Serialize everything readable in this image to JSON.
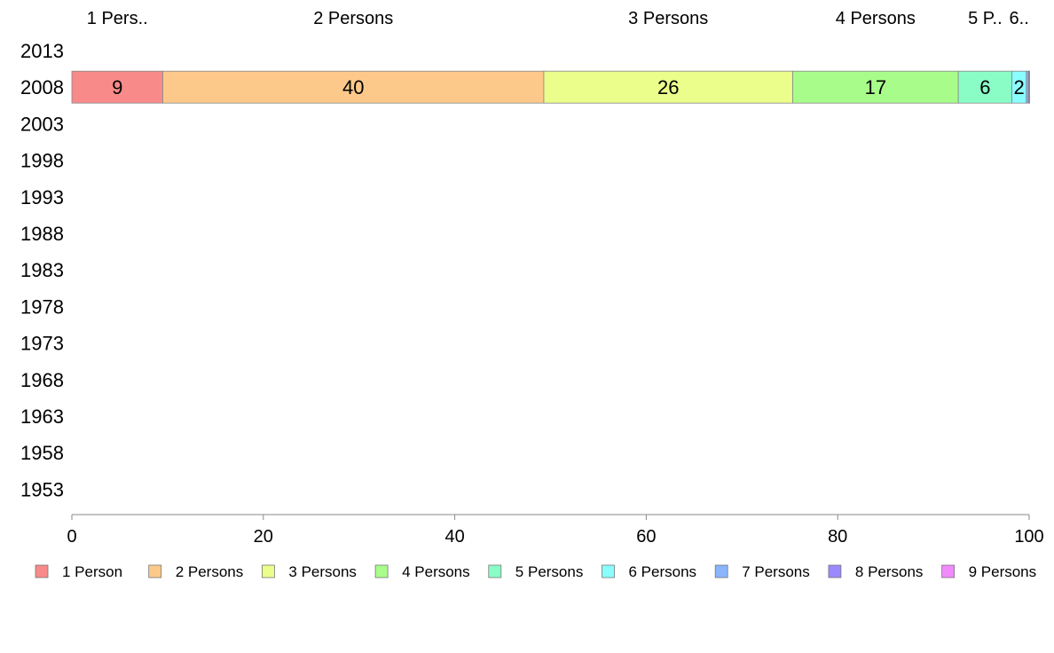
{
  "chart_data": {
    "type": "bar",
    "orientation": "horizontal",
    "stacked": true,
    "categories": [
      "2013",
      "2008",
      "2003",
      "1998",
      "1993",
      "1988",
      "1983",
      "1978",
      "1973",
      "1968",
      "1963",
      "1958",
      "1953"
    ],
    "xlim": [
      0,
      100
    ],
    "xticks": [
      "0",
      "20",
      "40",
      "60",
      "80",
      "100"
    ],
    "series": [
      {
        "name": "1 Person",
        "values": [
          null,
          9.5,
          null,
          null,
          null,
          null,
          null,
          null,
          null,
          null,
          null,
          null,
          null
        ],
        "data_label": "9",
        "top_label": "1 Pers..",
        "color": "#f88a8a"
      },
      {
        "name": "2 Persons",
        "values": [
          null,
          39.8,
          null,
          null,
          null,
          null,
          null,
          null,
          null,
          null,
          null,
          null,
          null
        ],
        "data_label": "40",
        "top_label": "2 Persons",
        "color": "#fdc98a"
      },
      {
        "name": "3 Persons",
        "values": [
          null,
          26.0,
          null,
          null,
          null,
          null,
          null,
          null,
          null,
          null,
          null,
          null,
          null
        ],
        "data_label": "26",
        "top_label": "3 Persons",
        "color": "#ebfd8a"
      },
      {
        "name": "4 Persons",
        "values": [
          null,
          17.3,
          null,
          null,
          null,
          null,
          null,
          null,
          null,
          null,
          null,
          null,
          null
        ],
        "data_label": "17",
        "top_label": "4 Persons",
        "color": "#a8fd8a"
      },
      {
        "name": "5 Persons",
        "values": [
          null,
          5.6,
          null,
          null,
          null,
          null,
          null,
          null,
          null,
          null,
          null,
          null,
          null
        ],
        "data_label": "6",
        "top_label": "5 P..",
        "color": "#8afdc7"
      },
      {
        "name": "6 Persons",
        "values": [
          null,
          1.5,
          null,
          null,
          null,
          null,
          null,
          null,
          null,
          null,
          null,
          null,
          null
        ],
        "data_label": "2",
        "top_label": "6..",
        "color": "#8afdfd"
      },
      {
        "name": "7 Persons",
        "values": [
          null,
          0.2,
          null,
          null,
          null,
          null,
          null,
          null,
          null,
          null,
          null,
          null,
          null
        ],
        "data_label": "",
        "top_label": "",
        "color": "#8ab5fd"
      },
      {
        "name": "8 Persons",
        "values": [
          null,
          0.1,
          null,
          null,
          null,
          null,
          null,
          null,
          null,
          null,
          null,
          null,
          null
        ],
        "data_label": "",
        "top_label": "",
        "color": "#9a8afd"
      },
      {
        "name": "9 Persons",
        "values": [
          null,
          0.05,
          null,
          null,
          null,
          null,
          null,
          null,
          null,
          null,
          null,
          null,
          null
        ],
        "data_label": "",
        "top_label": "",
        "color": "#f08afd"
      }
    ],
    "legend": "bottom",
    "grid": false,
    "title": "",
    "xlabel": "",
    "ylabel": ""
  }
}
